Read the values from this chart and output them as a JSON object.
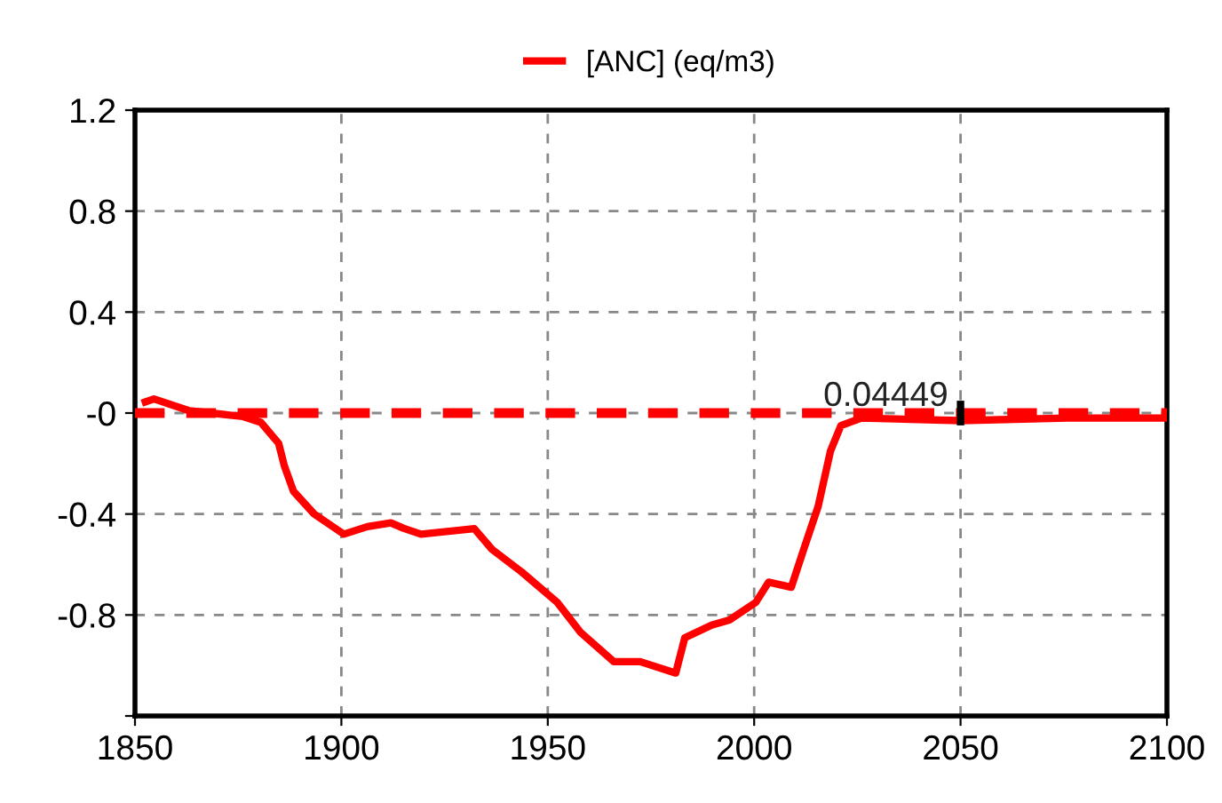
{
  "chart_data": {
    "type": "line",
    "legend": "top",
    "grid": true,
    "marker": "none",
    "line_style": "solid",
    "xlim": [
      1850,
      2100
    ],
    "xticks": [
      1850,
      1900,
      1950,
      2000,
      2050,
      2100
    ],
    "ylim": [
      -1.2,
      1.2
    ],
    "yticks": [
      {
        "value": -1.2,
        "label": null
      },
      -0.8,
      -0.4,
      {
        "value": 0,
        "label": "-0"
      },
      0.4,
      0.8,
      1.2
    ],
    "series": [
      {
        "name": "[ANC] (eq/m3)",
        "color": "#ff0000",
        "x": [
          1852.5,
          1854.6,
          1863.2,
          1876.2,
          1880.5,
          1884.8,
          1886.2,
          1888.4,
          1893.4,
          1900.6,
          1906.3,
          1912,
          1915,
          1919.3,
          1932.2,
          1936.5,
          1943.7,
          1952.3,
          1958,
          1966,
          1972.4,
          1981,
          1983.2,
          1989.7,
          1994,
          2000.4,
          2003.5,
          2009,
          2012,
          2015.5,
          2018.5,
          2021,
          2026,
          2050,
          2076,
          2100
        ],
        "values": [
          0.044,
          0.056,
          0.009,
          -0.014,
          -0.037,
          -0.12,
          -0.21,
          -0.31,
          -0.4,
          -0.48,
          -0.45,
          -0.435,
          -0.456,
          -0.48,
          -0.458,
          -0.54,
          -0.63,
          -0.75,
          -0.87,
          -0.985,
          -0.985,
          -1.03,
          -0.89,
          -0.84,
          -0.82,
          -0.75,
          -0.67,
          -0.69,
          -0.54,
          -0.37,
          -0.15,
          -0.05,
          -0.02,
          -0.03,
          -0.02,
          -0.02
        ]
      }
    ],
    "ref_lines": [
      {
        "axis": "y",
        "value": 0,
        "color": "#ff0000",
        "line_style": "dashed"
      }
    ],
    "annotations": [
      {
        "text": "0.04449",
        "x": 2050,
        "y": 0
      }
    ]
  }
}
